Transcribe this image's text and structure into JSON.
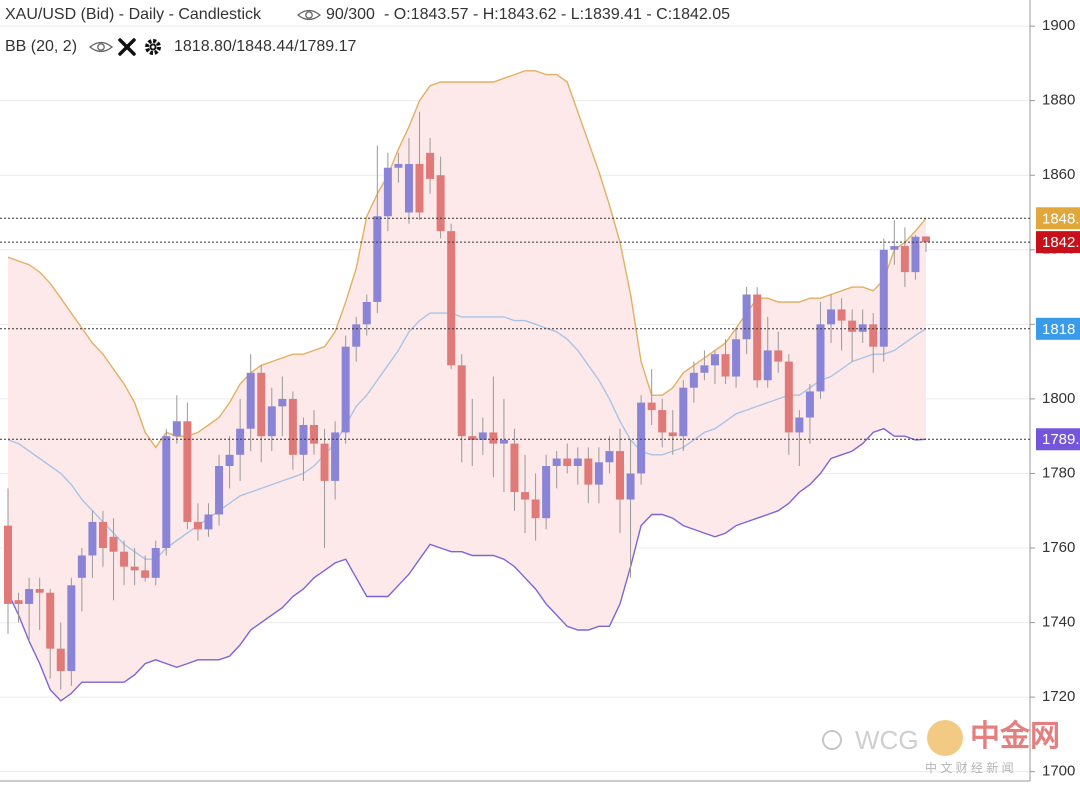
{
  "chart_data": {
    "type": "candlestick",
    "header": {
      "title": "XAU/USD (Bid) - Daily - Candlestick",
      "counter": "90/300",
      "ohlc": "- O:1843.57 - H:1843.62 - L:1839.41 - C:1842.05",
      "indicator": "BB (20, 2)",
      "indicator_values": "1818.80/1848.44/1789.17"
    },
    "open": [
      1766,
      1746,
      1745,
      1749,
      1748,
      1733,
      1727,
      1752,
      1758,
      1767,
      1763,
      1759,
      1755,
      1754,
      1752,
      1760,
      1790,
      1794,
      1767,
      1765,
      1769,
      1782,
      1785,
      1792,
      1807,
      1790,
      1798,
      1800,
      1785,
      1793,
      1788,
      1778,
      1791,
      1814,
      1820,
      1826,
      1849,
      1862,
      1850,
      1863,
      1866,
      1860,
      1845,
      1809,
      1790,
      1789,
      1791,
      1788,
      1788,
      1775,
      1773,
      1768,
      1782,
      1784,
      1782,
      1784,
      1777,
      1783,
      1786,
      1773,
      1780,
      1799,
      1797,
      1791,
      1790,
      1803,
      1807,
      1809,
      1812,
      1806,
      1816,
      1828,
      1805,
      1813,
      1810,
      1791,
      1795,
      1802,
      1820,
      1824,
      1821,
      1818,
      1820,
      1814,
      1840,
      1841,
      1834,
      1843.57
    ],
    "high": [
      1776,
      1748,
      1752,
      1752,
      1749,
      1740,
      1752,
      1760,
      1770,
      1770,
      1768,
      1762,
      1760,
      1758,
      1762,
      1792,
      1801,
      1799,
      1772,
      1772,
      1785,
      1790,
      1800,
      1812,
      1809,
      1803,
      1806,
      1802,
      1795,
      1797,
      1792,
      1794,
      1817,
      1822,
      1828,
      1868,
      1866,
      1866,
      1870,
      1877,
      1870,
      1865,
      1847,
      1812,
      1800,
      1795,
      1806,
      1800,
      1792,
      1785,
      1780,
      1785,
      1786,
      1788,
      1787,
      1787,
      1787,
      1790,
      1792,
      1789,
      1801,
      1808,
      1800,
      1797,
      1805,
      1810,
      1813,
      1813,
      1816,
      1819,
      1830,
      1830,
      1822,
      1818,
      1812,
      1797,
      1804,
      1826,
      1828,
      1827,
      1824,
      1824,
      1823,
      1843,
      1848,
      1846,
      1844,
      1843.62
    ],
    "low": [
      1737,
      1740,
      1735,
      1738,
      1725,
      1722,
      1723,
      1743,
      1752,
      1755,
      1746,
      1750,
      1750,
      1751,
      1750,
      1758,
      1788,
      1765,
      1762,
      1763,
      1766,
      1776,
      1778,
      1786,
      1783,
      1786,
      1790,
      1781,
      1778,
      1785,
      1760,
      1773,
      1788,
      1810,
      1817,
      1823,
      1845,
      1858,
      1847,
      1848,
      1855,
      1843,
      1808,
      1783,
      1782,
      1785,
      1779,
      1775,
      1770,
      1764,
      1762,
      1765,
      1776,
      1780,
      1777,
      1772,
      1772,
      1780,
      1764,
      1752,
      1777,
      1793,
      1787,
      1785,
      1786,
      1799,
      1805,
      1804,
      1804,
      1803,
      1812,
      1803,
      1803,
      1807,
      1785,
      1782,
      1788,
      1800,
      1815,
      1813,
      1810,
      1815,
      1807,
      1810,
      1836,
      1830,
      1832,
      1839.41
    ],
    "close": [
      1745,
      1745,
      1749,
      1748,
      1733,
      1727,
      1750,
      1758,
      1767,
      1760,
      1759,
      1755,
      1754,
      1752,
      1760,
      1790,
      1794,
      1767,
      1765,
      1769,
      1782,
      1785,
      1792,
      1807,
      1790,
      1798,
      1800,
      1785,
      1793,
      1788,
      1778,
      1791,
      1814,
      1820,
      1826,
      1849,
      1862,
      1863,
      1863,
      1850,
      1859,
      1845,
      1809,
      1790,
      1789,
      1791,
      1788,
      1789,
      1775,
      1773,
      1768,
      1782,
      1784,
      1782,
      1784,
      1777,
      1783,
      1786,
      1773,
      1780,
      1799,
      1797,
      1791,
      1790,
      1803,
      1807,
      1809,
      1812,
      1806,
      1816,
      1828,
      1805,
      1813,
      1810,
      1791,
      1795,
      1802,
      1820,
      1824,
      1821,
      1818,
      1820,
      1814,
      1840,
      1841,
      1834,
      1843.5,
      1842.05
    ],
    "up_color": "#8a84d6",
    "down_color": "#e07a78",
    "bands": {
      "upper": [
        1838,
        1837,
        1836,
        1834,
        1831,
        1827,
        1823,
        1819,
        1815,
        1812,
        1808,
        1804,
        1799,
        1791,
        1787,
        1791,
        1790,
        1790,
        1791,
        1793,
        1795,
        1799,
        1804,
        1807,
        1809,
        1810,
        1811,
        1812,
        1812,
        1813,
        1814,
        1818,
        1826,
        1835,
        1849,
        1855,
        1860,
        1867,
        1873,
        1880,
        1884,
        1885,
        1885,
        1885,
        1885,
        1885,
        1885,
        1886,
        1887,
        1888,
        1888,
        1887,
        1887,
        1885,
        1877,
        1869,
        1861,
        1852,
        1842,
        1828,
        1810,
        1801,
        1801,
        1803,
        1807,
        1809,
        1811,
        1813,
        1815,
        1819,
        1823,
        1827,
        1827,
        1826,
        1826,
        1826,
        1827,
        1827,
        1828,
        1829,
        1830,
        1830,
        1829,
        1832,
        1840,
        1842,
        1845,
        1848.44
      ],
      "middle": [
        1789,
        1788,
        1786,
        1784,
        1782,
        1780,
        1777,
        1773,
        1770,
        1767,
        1764,
        1761,
        1759,
        1757,
        1757,
        1760,
        1762,
        1764,
        1766,
        1768,
        1770,
        1772,
        1774,
        1775,
        1776,
        1777,
        1778,
        1779,
        1780,
        1782,
        1785,
        1788,
        1793,
        1798,
        1801,
        1805,
        1809,
        1813,
        1818,
        1821,
        1823,
        1823,
        1823,
        1822,
        1822,
        1822,
        1822,
        1822,
        1821,
        1821,
        1820,
        1819,
        1818,
        1816,
        1813,
        1809,
        1805,
        1800,
        1794,
        1789,
        1786,
        1785,
        1785,
        1786,
        1787,
        1789,
        1791,
        1792,
        1794,
        1796,
        1797,
        1798,
        1799,
        1800,
        1801,
        1801,
        1803,
        1805,
        1806,
        1808,
        1810,
        1811,
        1812,
        1812,
        1813,
        1815,
        1817,
        1818.8
      ],
      "lower": [
        1748,
        1742,
        1735,
        1729,
        1722,
        1719,
        1721,
        1724,
        1724,
        1724,
        1724,
        1724,
        1726,
        1729,
        1730,
        1729,
        1728,
        1729,
        1730,
        1730,
        1730,
        1731,
        1734,
        1738,
        1740,
        1742,
        1744,
        1747,
        1749,
        1752,
        1754,
        1756,
        1757,
        1752,
        1747,
        1747,
        1747,
        1750,
        1753,
        1757,
        1761,
        1760,
        1759,
        1759,
        1758,
        1758,
        1758,
        1757,
        1755,
        1752,
        1749,
        1745,
        1742,
        1739,
        1738,
        1738,
        1739,
        1739,
        1745,
        1755,
        1766,
        1769,
        1769,
        1768,
        1766,
        1765,
        1764,
        1763,
        1764,
        1766,
        1767,
        1768,
        1769,
        1770,
        1772,
        1775,
        1777,
        1780,
        1784,
        1785,
        1786,
        1788,
        1791,
        1792,
        1790,
        1790,
        1789,
        1789.17
      ],
      "upper_color": "#e3b062",
      "middle_color": "#aac4e6",
      "lower_color": "#7a66d8",
      "fill_color": "#fde9e9"
    },
    "ref_lines": [
      {
        "value": 1848.44,
        "label": "1848.",
        "color": "#e0a83a"
      },
      {
        "value": 1842.05,
        "label": "1842.",
        "color": "#c8101a"
      },
      {
        "value": 1818.8,
        "label": "1818",
        "color": "#3a9be8"
      },
      {
        "value": 1789.17,
        "label": "1789.",
        "color": "#7456dc"
      }
    ],
    "ylim": [
      1697.5,
      1907
    ],
    "yticks": [
      1700,
      1720,
      1740,
      1760,
      1780,
      1800,
      1820,
      1840,
      1860,
      1880,
      1900
    ],
    "grid": true,
    "watermark": {
      "brand": "WCG",
      "logo": "中金网",
      "tagline": "中 文 财 经 新 闻"
    }
  }
}
